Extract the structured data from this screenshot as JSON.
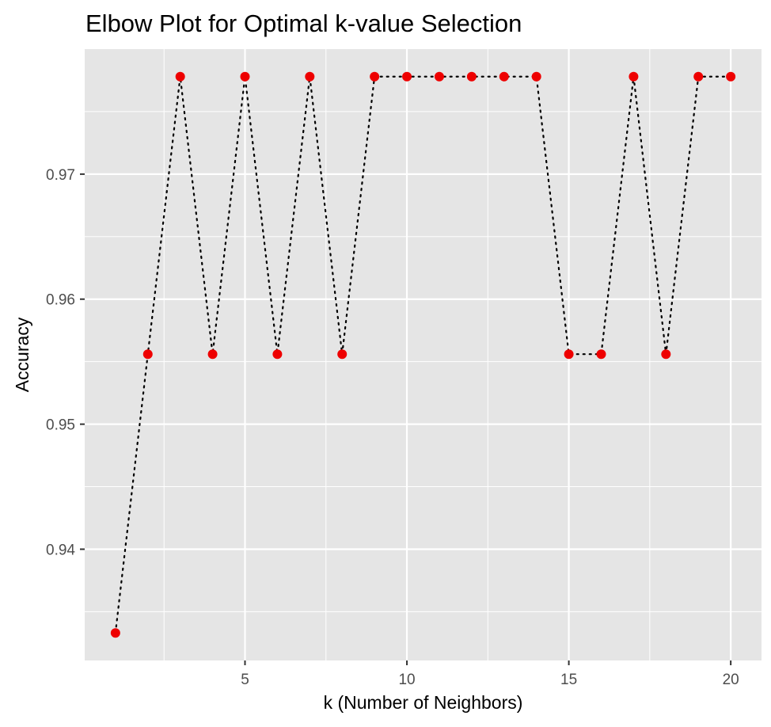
{
  "chart_data": {
    "type": "line",
    "title": "Elbow Plot for Optimal k-value Selection",
    "xlabel": "k (Number of Neighbors)",
    "ylabel": "Accuracy",
    "x": [
      1,
      2,
      3,
      4,
      5,
      6,
      7,
      8,
      9,
      10,
      11,
      12,
      13,
      14,
      15,
      16,
      17,
      18,
      19,
      20
    ],
    "series": [
      {
        "values": [
          0.9333,
          0.9556,
          0.9778,
          0.9556,
          0.9778,
          0.9556,
          0.9778,
          0.9556,
          0.9778,
          0.9778,
          0.9778,
          0.9778,
          0.9778,
          0.9778,
          0.9556,
          0.9556,
          0.9778,
          0.9556,
          0.9778,
          0.9778
        ],
        "line_style": "dotted",
        "line_color": "#000000",
        "marker_color": "#ee0000"
      }
    ],
    "xlim": [
      0.05,
      20.95
    ],
    "ylim": [
      0.9311,
      0.98
    ],
    "x_ticks": [
      5,
      10,
      15,
      20
    ],
    "x_tick_labels": [
      "5",
      "10",
      "15",
      "20"
    ],
    "x_minor_ticks": [
      2.5,
      7.5,
      12.5,
      17.5
    ],
    "y_ticks": [
      0.94,
      0.95,
      0.96,
      0.97
    ],
    "y_tick_labels": [
      "0.94",
      "0.95",
      "0.96",
      "0.97"
    ],
    "y_minor_ticks": [
      0.935,
      0.945,
      0.955,
      0.965,
      0.975
    ],
    "grid": true,
    "legend": "none",
    "panel_background": "#e5e5e5",
    "grid_color": "#ffffff"
  }
}
